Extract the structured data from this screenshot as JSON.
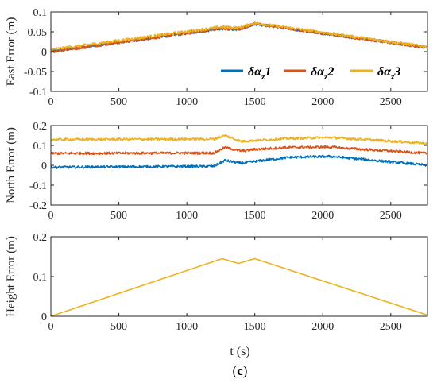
{
  "figure": {
    "caption_open": "(",
    "caption_letter": "c",
    "caption_close": ")",
    "xlabel": "t (s)"
  },
  "legend": [
    {
      "greek": "δα",
      "sub": "z",
      "num": "1",
      "color": "#0072BD"
    },
    {
      "greek": "δα",
      "sub": "z",
      "num": "2",
      "color": "#D95319"
    },
    {
      "greek": "δα",
      "sub": "z",
      "num": "3",
      "color": "#EDB120"
    }
  ],
  "chart_data": [
    {
      "type": "line",
      "ylabel": "East Error (m)",
      "xlim": [
        0,
        2770
      ],
      "ylim": [
        -0.1,
        0.1
      ],
      "xticks": [
        0,
        500,
        1000,
        1500,
        2000,
        2500
      ],
      "xtick_labels": [
        "0",
        "500",
        "1000",
        "1500",
        "2000",
        "2500"
      ],
      "yticks": [
        -0.1,
        -0.05,
        0,
        0.05,
        0.1
      ],
      "ytick_labels": [
        "-0.1",
        "-0.05",
        "0",
        "0.05",
        "0.1"
      ],
      "series": [
        {
          "name": "δα_z1",
          "color": "#0072BD",
          "x": [
            0,
            1250,
            1380,
            1500,
            2770
          ],
          "y": [
            0.0,
            0.058,
            0.056,
            0.07,
            0.01
          ]
        },
        {
          "name": "δα_z2",
          "color": "#D95319",
          "x": [
            0,
            1250,
            1380,
            1500,
            2770
          ],
          "y": [
            0.0,
            0.058,
            0.056,
            0.07,
            0.01
          ]
        },
        {
          "name": "δα_z3",
          "color": "#EDB120",
          "x": [
            0,
            1250,
            1380,
            1500,
            2770
          ],
          "y": [
            0.005,
            0.062,
            0.06,
            0.072,
            0.012
          ]
        }
      ]
    },
    {
      "type": "line",
      "ylabel": "North Error (m)",
      "xlim": [
        0,
        2770
      ],
      "ylim": [
        -0.2,
        0.2
      ],
      "xticks": [
        0,
        500,
        1000,
        1500,
        2000,
        2500
      ],
      "xtick_labels": [
        "0",
        "500",
        "1000",
        "1500",
        "2000",
        "2500"
      ],
      "yticks": [
        -0.2,
        -0.1,
        0,
        0.1,
        0.2
      ],
      "ytick_labels": [
        "-0.2",
        "-0.1",
        "0",
        "0.1",
        "0.2"
      ],
      "series": [
        {
          "name": "δα_z1",
          "color": "#0072BD",
          "x": [
            0,
            1200,
            1280,
            1400,
            1500,
            1750,
            2050,
            2300,
            2770
          ],
          "y": [
            -0.01,
            -0.005,
            0.025,
            0.01,
            0.02,
            0.04,
            0.045,
            0.03,
            0.0
          ]
        },
        {
          "name": "δα_z2",
          "color": "#D95319",
          "x": [
            0,
            1200,
            1280,
            1400,
            1500,
            1750,
            2050,
            2300,
            2770
          ],
          "y": [
            0.06,
            0.062,
            0.09,
            0.072,
            0.08,
            0.09,
            0.092,
            0.08,
            0.06
          ]
        },
        {
          "name": "δα_z3",
          "color": "#EDB120",
          "x": [
            0,
            1200,
            1280,
            1400,
            1500,
            1750,
            2050,
            2300,
            2770
          ],
          "y": [
            0.13,
            0.132,
            0.15,
            0.12,
            0.125,
            0.135,
            0.14,
            0.13,
            0.11
          ]
        }
      ]
    },
    {
      "type": "line",
      "ylabel": "Height Error (m)",
      "xlim": [
        0,
        2770
      ],
      "ylim": [
        0,
        0.2
      ],
      "xticks": [
        0,
        500,
        1000,
        1500,
        2000,
        2500
      ],
      "xtick_labels": [
        "0",
        "500",
        "1000",
        "1500",
        "2000",
        "2500"
      ],
      "yticks": [
        0,
        0.1,
        0.2
      ],
      "ytick_labels": [
        "0",
        "0.1",
        "0.2"
      ],
      "series": [
        {
          "name": "δα_z3",
          "color": "#EDB120",
          "x": [
            0,
            1260,
            1380,
            1500,
            2770
          ],
          "y": [
            0.0,
            0.145,
            0.133,
            0.145,
            0.003
          ]
        }
      ]
    }
  ]
}
